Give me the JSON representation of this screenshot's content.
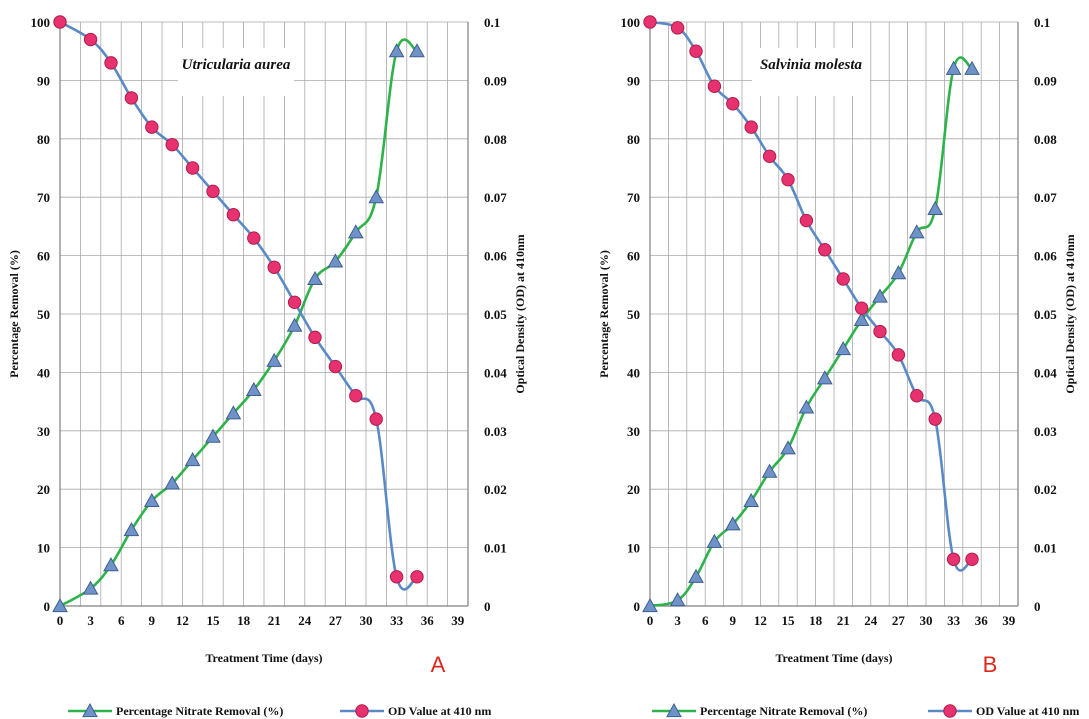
{
  "chart_data": [
    {
      "type": "line",
      "title": "Utricularia aurea",
      "panel_label": "A",
      "xlabel": "Treatment Time (days)",
      "ylabel": "Percentage Removal (%)",
      "y2label": "Optical Density (OD) at 410nm",
      "xlim": [
        0,
        40
      ],
      "ylim": [
        0,
        100
      ],
      "y2lim": [
        0,
        0.1
      ],
      "xticks": [
        "0",
        "3",
        "6",
        "9",
        "12",
        "15",
        "18",
        "21",
        "24",
        "27",
        "30",
        "33",
        "36",
        "39"
      ],
      "yticks": [
        "0",
        "10",
        "20",
        "30",
        "40",
        "50",
        "60",
        "70",
        "80",
        "90",
        "100"
      ],
      "y2ticks": [
        "0",
        "0.01",
        "0.02",
        "0.03",
        "0.04",
        "0.05",
        "0.06",
        "0.07",
        "0.08",
        "0.09",
        "0.1"
      ],
      "grid": true,
      "legend_position": "bottom",
      "series": [
        {
          "name": "Percentage Nitrate Removal (%)",
          "axis": "left",
          "marker": "triangle",
          "line_color": "#2db34a",
          "marker_color": "#6f93c9",
          "x": [
            0,
            3,
            5,
            7,
            9,
            11,
            13,
            15,
            17,
            19,
            21,
            23,
            25,
            27,
            29,
            31,
            33,
            35
          ],
          "values": [
            0,
            3,
            7,
            13,
            18,
            21,
            25,
            29,
            33,
            37,
            42,
            48,
            56,
            59,
            64,
            70,
            95,
            95
          ]
        },
        {
          "name": "OD Value at 410 nm",
          "axis": "right",
          "marker": "circle",
          "line_color": "#5a8ac6",
          "marker_color": "#e8326f",
          "x": [
            0,
            3,
            5,
            7,
            9,
            11,
            13,
            15,
            17,
            19,
            21,
            23,
            25,
            27,
            29,
            31,
            33,
            35
          ],
          "values": [
            0.1,
            0.097,
            0.093,
            0.087,
            0.082,
            0.079,
            0.075,
            0.071,
            0.067,
            0.063,
            0.058,
            0.052,
            0.046,
            0.041,
            0.036,
            0.032,
            0.005,
            0.005
          ]
        }
      ]
    },
    {
      "type": "line",
      "title": "Salvinia molesta",
      "panel_label": "B",
      "xlabel": "Treatment Time (days)",
      "ylabel": "Percentage Removal (%)",
      "y2label": "Optical Density (OD) at 410nm",
      "xlim": [
        0,
        40
      ],
      "ylim": [
        0,
        100
      ],
      "y2lim": [
        0,
        0.1
      ],
      "xticks": [
        "0",
        "3",
        "6",
        "9",
        "12",
        "15",
        "18",
        "21",
        "24",
        "27",
        "30",
        "33",
        "36",
        "39"
      ],
      "yticks": [
        "0",
        "10",
        "20",
        "30",
        "40",
        "50",
        "60",
        "70",
        "80",
        "90",
        "100"
      ],
      "y2ticks": [
        "0",
        "0.01",
        "0.02",
        "0.03",
        "0.04",
        "0.05",
        "0.06",
        "0.07",
        "0.08",
        "0.09",
        "0.1"
      ],
      "grid": true,
      "legend_position": "bottom",
      "series": [
        {
          "name": "Percentage Nitrate Removal (%)",
          "axis": "left",
          "marker": "triangle",
          "line_color": "#2db34a",
          "marker_color": "#6f93c9",
          "x": [
            0,
            3,
            5,
            7,
            9,
            11,
            13,
            15,
            17,
            19,
            21,
            23,
            25,
            27,
            29,
            31,
            33,
            35
          ],
          "values": [
            0,
            1,
            5,
            11,
            14,
            18,
            23,
            27,
            34,
            39,
            44,
            49,
            53,
            57,
            64,
            68,
            92,
            92
          ]
        },
        {
          "name": "OD Value at 410 nm",
          "axis": "right",
          "marker": "circle",
          "line_color": "#5a8ac6",
          "marker_color": "#e8326f",
          "x": [
            0,
            3,
            5,
            7,
            9,
            11,
            13,
            15,
            17,
            19,
            21,
            23,
            25,
            27,
            29,
            31,
            33,
            35
          ],
          "values": [
            0.1,
            0.099,
            0.095,
            0.089,
            0.086,
            0.082,
            0.077,
            0.073,
            0.066,
            0.061,
            0.056,
            0.051,
            0.047,
            0.043,
            0.036,
            0.032,
            0.008,
            0.008
          ]
        }
      ]
    }
  ]
}
